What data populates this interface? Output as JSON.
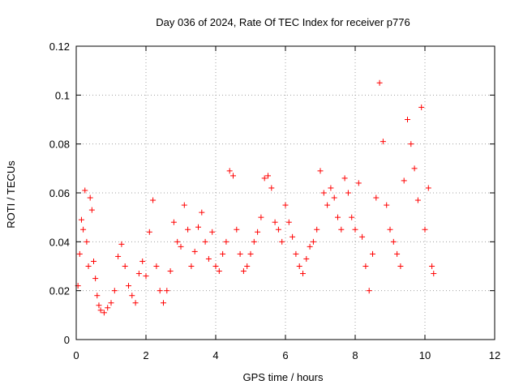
{
  "chart_data": {
    "type": "scatter",
    "title": "Day 036 of 2024, Rate Of TEC Index for receiver p776",
    "xlabel": "GPS time / hours",
    "ylabel": "ROTI / TECUs",
    "xlim": [
      0,
      12
    ],
    "ylim": [
      0,
      0.12
    ],
    "x_ticks": [
      0,
      2,
      4,
      6,
      8,
      10,
      12
    ],
    "x_tick_labels": [
      "0",
      "2",
      "4",
      "6",
      "8",
      "10",
      "12"
    ],
    "y_ticks": [
      0,
      0.02,
      0.04,
      0.06,
      0.08,
      0.1,
      0.12
    ],
    "y_tick_labels": [
      "0",
      "0.02",
      "0.04",
      "0.06",
      "0.08",
      "0.1",
      "0.12"
    ],
    "grid": true,
    "marker": "+",
    "color": "#ff0000",
    "series": [
      {
        "name": "ROTI",
        "x": [
          0.05,
          0.1,
          0.15,
          0.2,
          0.25,
          0.3,
          0.35,
          0.4,
          0.45,
          0.5,
          0.55,
          0.6,
          0.65,
          0.7,
          0.8,
          0.9,
          1.0,
          1.1,
          1.2,
          1.3,
          1.4,
          1.5,
          1.6,
          1.7,
          1.8,
          1.9,
          2.0,
          2.1,
          2.2,
          2.3,
          2.4,
          2.5,
          2.6,
          2.7,
          2.8,
          2.9,
          3.0,
          3.1,
          3.2,
          3.3,
          3.4,
          3.5,
          3.6,
          3.7,
          3.8,
          3.9,
          4.0,
          4.1,
          4.2,
          4.3,
          4.4,
          4.5,
          4.6,
          4.7,
          4.8,
          4.9,
          5.0,
          5.1,
          5.2,
          5.3,
          5.4,
          5.5,
          5.6,
          5.7,
          5.8,
          5.9,
          6.0,
          6.1,
          6.2,
          6.3,
          6.4,
          6.5,
          6.6,
          6.7,
          6.8,
          6.9,
          7.0,
          7.1,
          7.2,
          7.3,
          7.4,
          7.5,
          7.6,
          7.7,
          7.8,
          7.9,
          8.0,
          8.1,
          8.2,
          8.3,
          8.4,
          8.5,
          8.6,
          8.7,
          8.8,
          8.9,
          9.0,
          9.1,
          9.2,
          9.3,
          9.4,
          9.5,
          9.6,
          9.7,
          9.8,
          9.9,
          10.0,
          10.1,
          10.2,
          10.25
        ],
        "y": [
          0.022,
          0.035,
          0.049,
          0.045,
          0.061,
          0.04,
          0.03,
          0.058,
          0.053,
          0.032,
          0.025,
          0.018,
          0.014,
          0.012,
          0.011,
          0.013,
          0.015,
          0.02,
          0.034,
          0.039,
          0.03,
          0.022,
          0.018,
          0.015,
          0.027,
          0.032,
          0.026,
          0.044,
          0.057,
          0.03,
          0.02,
          0.015,
          0.02,
          0.028,
          0.048,
          0.04,
          0.038,
          0.055,
          0.045,
          0.03,
          0.036,
          0.046,
          0.052,
          0.04,
          0.033,
          0.044,
          0.03,
          0.028,
          0.035,
          0.04,
          0.069,
          0.067,
          0.045,
          0.035,
          0.028,
          0.03,
          0.035,
          0.04,
          0.044,
          0.05,
          0.066,
          0.067,
          0.062,
          0.048,
          0.045,
          0.04,
          0.055,
          0.048,
          0.042,
          0.035,
          0.03,
          0.027,
          0.033,
          0.038,
          0.04,
          0.045,
          0.069,
          0.06,
          0.055,
          0.062,
          0.058,
          0.05,
          0.045,
          0.066,
          0.06,
          0.05,
          0.045,
          0.064,
          0.042,
          0.03,
          0.02,
          0.035,
          0.058,
          0.105,
          0.081,
          0.055,
          0.045,
          0.04,
          0.035,
          0.03,
          0.065,
          0.09,
          0.08,
          0.07,
          0.057,
          0.095,
          0.045,
          0.062,
          0.03,
          0.027
        ]
      }
    ]
  }
}
